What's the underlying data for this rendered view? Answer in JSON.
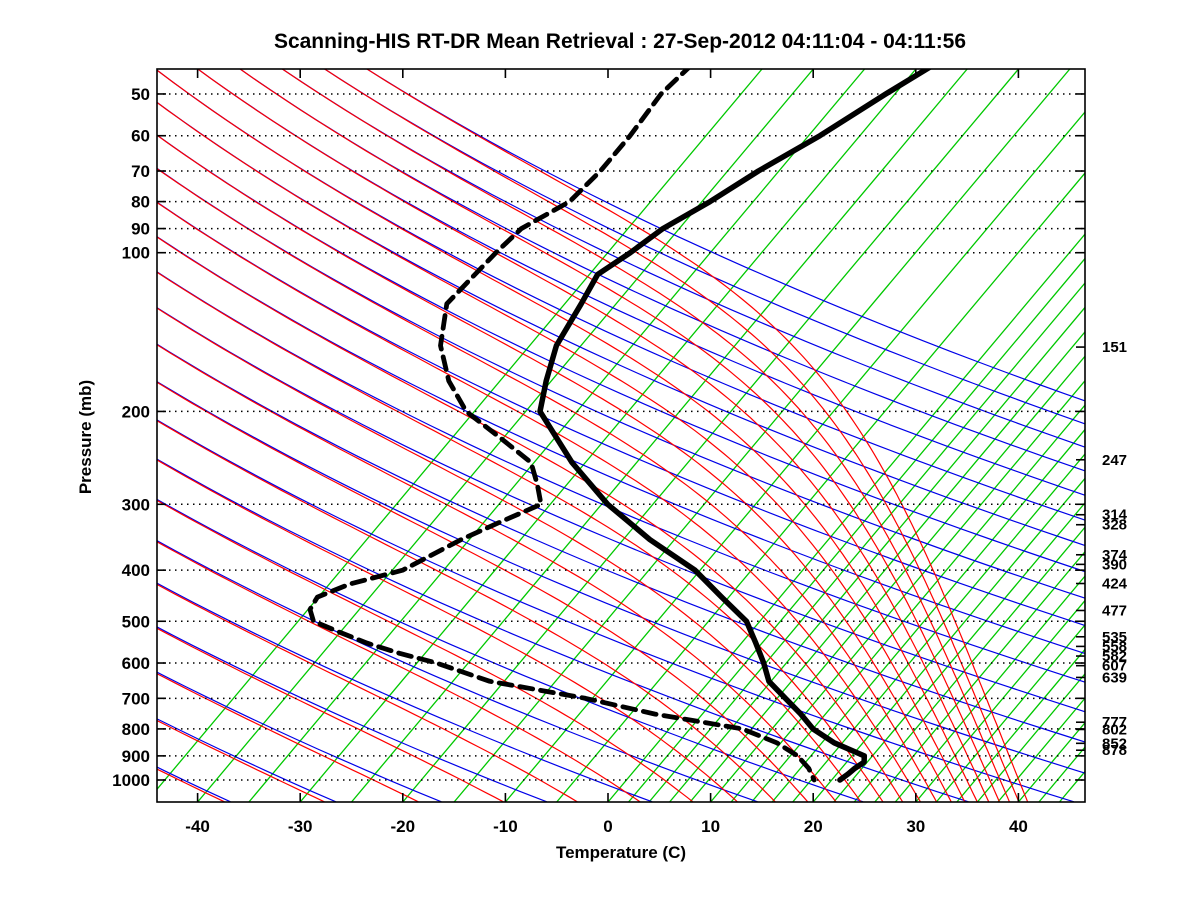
{
  "title": "Scanning-HIS RT-DR Mean Retrieval : 27-Sep-2012 04:11:04 - 04:11:56",
  "axes": {
    "x": {
      "label": "Temperature (C)",
      "ticks": [
        -40,
        -30,
        -20,
        -10,
        0,
        10,
        20,
        30,
        40
      ],
      "range_at_surface": [
        -44,
        46.5
      ]
    },
    "y": {
      "label": "Pressure (mb)",
      "ticks": [
        50,
        60,
        70,
        80,
        90,
        100,
        200,
        300,
        400,
        500,
        600,
        700,
        800,
        900,
        1000
      ],
      "top_mb": 44.8,
      "bottom_mb": 1100,
      "scale": "log"
    },
    "right_levels": [
      151,
      247,
      314,
      328,
      374,
      390,
      424,
      477,
      535,
      558,
      582,
      607,
      639,
      777,
      802,
      852,
      878
    ]
  },
  "chart_data": {
    "type": "line",
    "diagram": "skew-t-log-p sounding",
    "title": "Scanning-HIS RT-DR Mean Retrieval : 27-Sep-2012 04:11:04 - 04:11:56",
    "xlabel": "Temperature (C)",
    "ylabel": "Pressure (mb)",
    "grid": "dotted horizontal isobars at labeled pressures",
    "legend": "none",
    "series": [
      {
        "name": "temperature",
        "style": "solid",
        "color": "#000000",
        "width": 5.5,
        "points_p_mb_T_C": [
          [
            44,
            -28.6
          ],
          [
            50,
            -30.9
          ],
          [
            60,
            -33.9
          ],
          [
            70,
            -37.0
          ],
          [
            80,
            -39.2
          ],
          [
            90,
            -41.6
          ],
          [
            100,
            -42.8
          ],
          [
            110,
            -44.2
          ],
          [
            125,
            -43.4
          ],
          [
            150,
            -42.4
          ],
          [
            175,
            -40.5
          ],
          [
            200,
            -38.6
          ],
          [
            250,
            -31.3
          ],
          [
            300,
            -24.4
          ],
          [
            350,
            -17.4
          ],
          [
            400,
            -10.5
          ],
          [
            450,
            -5.7
          ],
          [
            500,
            -1.3
          ],
          [
            550,
            1.4
          ],
          [
            600,
            3.8
          ],
          [
            650,
            5.8
          ],
          [
            700,
            8.8
          ],
          [
            750,
            11.6
          ],
          [
            800,
            14.0
          ],
          [
            850,
            17.2
          ],
          [
            900,
            21.2
          ],
          [
            925,
            21.7
          ],
          [
            950,
            21.3
          ],
          [
            975,
            21.1
          ],
          [
            1000,
            20.8
          ]
        ]
      },
      {
        "name": "dewpoint",
        "style": "dashed",
        "color": "#000000",
        "width": 4.8,
        "points_p_mb_T_C": [
          [
            44,
            -52.2
          ],
          [
            50,
            -52.8
          ],
          [
            60,
            -52.4
          ],
          [
            70,
            -52.4
          ],
          [
            80,
            -52.9
          ],
          [
            90,
            -55.4
          ],
          [
            100,
            -55.9
          ],
          [
            125,
            -56.5
          ],
          [
            150,
            -53.7
          ],
          [
            175,
            -50.0
          ],
          [
            200,
            -45.8
          ],
          [
            225,
            -40.2
          ],
          [
            250,
            -35.3
          ],
          [
            275,
            -32.9
          ],
          [
            300,
            -30.9
          ],
          [
            325,
            -33.5
          ],
          [
            350,
            -35.8
          ],
          [
            400,
            -39.0
          ],
          [
            425,
            -43.0
          ],
          [
            450,
            -45.1
          ],
          [
            475,
            -44.8
          ],
          [
            500,
            -43.5
          ],
          [
            525,
            -40.0
          ],
          [
            550,
            -36.5
          ],
          [
            575,
            -32.5
          ],
          [
            600,
            -28.1
          ],
          [
            650,
            -21.4
          ],
          [
            700,
            -10.7
          ],
          [
            750,
            -2.6
          ],
          [
            800,
            7.1
          ],
          [
            850,
            11.6
          ],
          [
            900,
            14.7
          ],
          [
            950,
            16.8
          ],
          [
            1000,
            18.3
          ]
        ]
      }
    ],
    "background": {
      "skewed_temperature_lines": {
        "color": "#00c800",
        "coarse": {
          "tmin": -45,
          "tmax": 0,
          "step": 5
        },
        "fine": {
          "tmin": 2,
          "tmax": 44,
          "step": 2
        }
      },
      "dry_adiabats": {
        "color": "#0000e8",
        "theta_min_K": 230,
        "theta_max_K": 460,
        "step_K": 10
      },
      "moist_adiabats": {
        "color": "#ff0000",
        "thetae_min_K": 230,
        "thetae_max_K": 460,
        "step_K": 10
      },
      "isobar_color": "#000000"
    }
  }
}
